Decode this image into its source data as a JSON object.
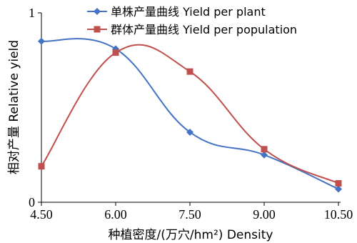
{
  "chart_data": {
    "type": "line",
    "xlabel": "种植密度/(万穴/hm²) Density",
    "ylabel": "相对产量 Relative yield",
    "xlim": [
      4.5,
      10.5
    ],
    "ylim": [
      0,
      1
    ],
    "x_ticks": [
      "4.50",
      "6.00",
      "7.50",
      "9.00",
      "10.50"
    ],
    "y_ticks": [
      "0",
      "1"
    ],
    "x": [
      4.5,
      6.0,
      7.5,
      9.0,
      10.5
    ],
    "series": [
      {
        "name": "单株产量曲线 Yield per plant",
        "values": [
          0.85,
          0.81,
          0.37,
          0.25,
          0.07
        ],
        "color": "#4472c4",
        "marker": "diamond"
      },
      {
        "name": "群体产量曲线 Yield per population",
        "values": [
          0.19,
          0.79,
          0.69,
          0.28,
          0.1
        ],
        "color": "#c0504d",
        "marker": "square"
      }
    ],
    "legend_position": "top-right",
    "smooth": true,
    "grid": false
  }
}
